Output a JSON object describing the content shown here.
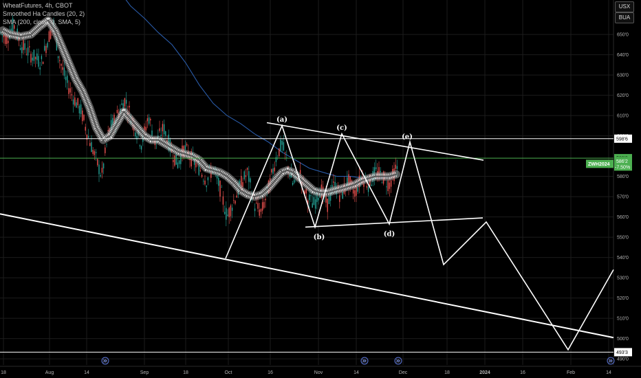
{
  "legend": {
    "line1": "WheatFutures, 4h, CBOT",
    "line2": "Smoothed Ha Candles (20, 2)",
    "line3": "SMA (200, close, 0, SMA, 5)"
  },
  "top_buttons": {
    "currency": "USX",
    "unit": "BUA"
  },
  "colors": {
    "background": "#000000",
    "candle_up": "#26a69a",
    "candle_down": "#ef5350",
    "ha_band": "#d9d9d9",
    "sma": "#2a5caa",
    "current_price": "#4caf50",
    "drawings": "#ffffff",
    "grid": "#1c1c1c"
  },
  "chart_data": {
    "type": "candlestick",
    "symbol": "ZWH2024",
    "change_text": "-7.50%",
    "y_axis": {
      "range": [
        487,
        667
      ],
      "ticks": [
        "490'0",
        "500'0",
        "510'0",
        "520'0",
        "530'0",
        "540'0",
        "550'0",
        "560'0",
        "570'0",
        "580'0",
        "600'0",
        "610'0",
        "620'0",
        "630'0",
        "640'0",
        "650'0"
      ],
      "tick_values": [
        490,
        500,
        510,
        520,
        530,
        540,
        550,
        560,
        570,
        580,
        600,
        610,
        620,
        630,
        640,
        650
      ]
    },
    "x_axis": {
      "labels": [
        "18",
        "Aug",
        "14",
        "Sep",
        "18",
        "Oct",
        "16",
        "Nov",
        "14",
        "Dec",
        "18",
        "2024",
        "16",
        "Feb",
        "14"
      ],
      "bold_labels": [
        "2024"
      ]
    },
    "horizontal_lines": [
      {
        "label": "598'6",
        "value": 598.6,
        "color": "#ffffff"
      },
      {
        "label": "589'0",
        "value": 589.0,
        "color": "#4caf50"
      },
      {
        "label": "493'3",
        "value": 493.3,
        "color": "#ffffff"
      }
    ],
    "last_price": {
      "symbol": "ZWH2024",
      "value_text": "586'2",
      "change_text": "-7.50%",
      "value": 586.2
    },
    "price_path": [
      [
        0,
        651
      ],
      [
        10,
        648
      ],
      [
        20,
        655
      ],
      [
        30,
        645
      ],
      [
        45,
        640
      ],
      [
        60,
        636
      ],
      [
        70,
        648
      ],
      [
        78,
        655
      ],
      [
        85,
        640
      ],
      [
        95,
        628
      ],
      [
        105,
        620
      ],
      [
        118,
        612
      ],
      [
        128,
        600
      ],
      [
        138,
        590
      ],
      [
        148,
        580
      ],
      [
        158,
        602
      ],
      [
        170,
        610
      ],
      [
        182,
        618
      ],
      [
        194,
        606
      ],
      [
        206,
        596
      ],
      [
        216,
        610
      ],
      [
        226,
        596
      ],
      [
        238,
        604
      ],
      [
        248,
        594
      ],
      [
        258,
        586
      ],
      [
        268,
        594
      ],
      [
        280,
        588
      ],
      [
        290,
        584
      ],
      [
        300,
        578
      ],
      [
        310,
        584
      ],
      [
        320,
        574
      ],
      [
        330,
        560
      ],
      [
        340,
        568
      ],
      [
        350,
        576
      ],
      [
        360,
        582
      ],
      [
        370,
        566
      ],
      [
        380,
        562
      ],
      [
        392,
        576
      ],
      [
        402,
        590
      ],
      [
        410,
        596
      ],
      [
        418,
        586
      ],
      [
        426,
        576
      ],
      [
        436,
        582
      ],
      [
        446,
        570
      ],
      [
        456,
        566
      ],
      [
        466,
        574
      ],
      [
        476,
        566
      ],
      [
        486,
        576
      ],
      [
        496,
        570
      ],
      [
        506,
        578
      ],
      [
        516,
        572
      ],
      [
        526,
        580
      ],
      [
        536,
        576
      ],
      [
        546,
        582
      ],
      [
        556,
        580
      ],
      [
        566,
        576
      ],
      [
        576,
        584
      ]
    ],
    "ha_band_path": [
      [
        4,
        652
      ],
      [
        15,
        650
      ],
      [
        30,
        649
      ],
      [
        45,
        650
      ],
      [
        58,
        654
      ],
      [
        70,
        657
      ],
      [
        80,
        652
      ],
      [
        90,
        644
      ],
      [
        100,
        636
      ],
      [
        110,
        628
      ],
      [
        120,
        622
      ],
      [
        130,
        614
      ],
      [
        140,
        604
      ],
      [
        150,
        598
      ],
      [
        160,
        600
      ],
      [
        170,
        606
      ],
      [
        180,
        612
      ],
      [
        190,
        608
      ],
      [
        200,
        604
      ],
      [
        210,
        600
      ],
      [
        220,
        598
      ],
      [
        230,
        598
      ],
      [
        240,
        596
      ],
      [
        250,
        594
      ],
      [
        260,
        592
      ],
      [
        270,
        591
      ],
      [
        280,
        590
      ],
      [
        290,
        588
      ],
      [
        300,
        584
      ],
      [
        310,
        583
      ],
      [
        320,
        582
      ],
      [
        330,
        580
      ],
      [
        340,
        577
      ],
      [
        350,
        573
      ],
      [
        360,
        571
      ],
      [
        370,
        570
      ],
      [
        380,
        571
      ],
      [
        390,
        574
      ],
      [
        400,
        578
      ],
      [
        410,
        582
      ],
      [
        418,
        583
      ],
      [
        426,
        582
      ],
      [
        436,
        579
      ],
      [
        446,
        576
      ],
      [
        456,
        573
      ],
      [
        466,
        572
      ],
      [
        476,
        572
      ],
      [
        486,
        573
      ],
      [
        496,
        574
      ],
      [
        506,
        575
      ],
      [
        516,
        576
      ],
      [
        526,
        578
      ],
      [
        536,
        579
      ],
      [
        546,
        580
      ],
      [
        556,
        580
      ],
      [
        566,
        580
      ],
      [
        576,
        581
      ]
    ],
    "sma_path": [
      [
        170,
        673
      ],
      [
        190,
        664
      ],
      [
        210,
        658
      ],
      [
        230,
        651
      ],
      [
        250,
        645
      ],
      [
        270,
        636
      ],
      [
        290,
        625
      ],
      [
        310,
        616
      ],
      [
        330,
        610
      ],
      [
        350,
        606
      ],
      [
        370,
        601
      ],
      [
        390,
        597
      ],
      [
        410,
        592
      ],
      [
        430,
        588
      ],
      [
        450,
        584
      ],
      [
        470,
        582
      ],
      [
        490,
        580
      ],
      [
        510,
        580
      ],
      [
        530,
        579
      ],
      [
        550,
        579
      ],
      [
        570,
        580
      ]
    ],
    "drawings": {
      "wave_path": [
        [
          328,
          539.5
        ],
        [
          410,
          605
        ],
        [
          458,
          555
        ],
        [
          497,
          601
        ],
        [
          566,
          556.5
        ],
        [
          596,
          597
        ],
        [
          645,
          536.5
        ],
        [
          707,
          557.5
        ],
        [
          826,
          494.5
        ],
        [
          892,
          534
        ]
      ],
      "upper_trendline": [
        [
          388,
          606.5
        ],
        [
          703,
          588
        ]
      ],
      "lower_trendline": [
        [
          444,
          555
        ],
        [
          702,
          559.5
        ]
      ],
      "long_support": [
        [
          0,
          561.5
        ],
        [
          892,
          500.5
        ]
      ],
      "wave_labels": [
        {
          "text": "(a)",
          "x": 410,
          "y": 607
        },
        {
          "text": "(b)",
          "x": 464,
          "y": 549
        },
        {
          "text": "(c)",
          "x": 497,
          "y": 603
        },
        {
          "text": "(d)",
          "x": 566,
          "y": 550.5
        },
        {
          "text": "(e)",
          "x": 592,
          "y": 598.5
        }
      ]
    }
  }
}
